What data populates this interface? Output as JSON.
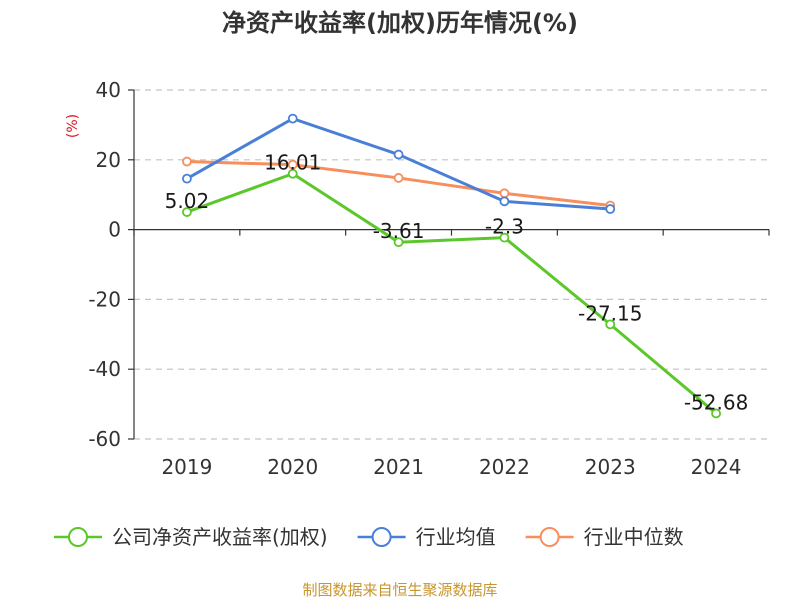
{
  "chart_data": {
    "type": "line",
    "title": "净资产收益率(加权)历年情况(%)",
    "ylabel": "(%)",
    "xlabel": "",
    "ylim": [
      -60,
      40
    ],
    "yticks": [
      40,
      20,
      0,
      -20,
      -40,
      -60
    ],
    "grid": true,
    "legend_position": "bottom",
    "categories": [
      "2019",
      "2020",
      "2021",
      "2022",
      "2023",
      "2024"
    ],
    "series": [
      {
        "name": "公司净资产收益率(加权)",
        "color": "#5cc72a",
        "values": [
          5.02,
          16.01,
          -3.61,
          -2.3,
          -27.15,
          -52.68
        ],
        "labels": [
          "5.02",
          "16.01",
          "-3.61",
          "-2.3",
          "-27.15",
          "-52.68"
        ]
      },
      {
        "name": "行业均值",
        "color": "#4a7fd8",
        "values": [
          14.6,
          31.8,
          21.5,
          8.1,
          5.9,
          null
        ]
      },
      {
        "name": "行业中位数",
        "color": "#f78e5b",
        "values": [
          19.5,
          18.6,
          14.8,
          10.4,
          6.9,
          null
        ]
      }
    ],
    "source": "制图数据来自恒生聚源数据库",
    "unit_color": "#e0141e",
    "source_color": "#c8962e"
  }
}
